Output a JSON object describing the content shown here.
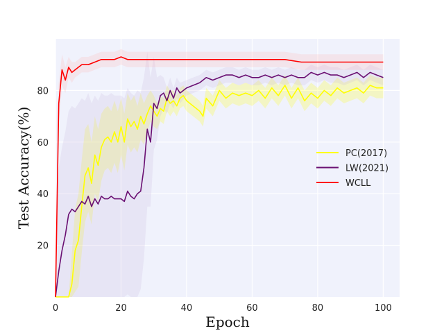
{
  "chart_data": {
    "type": "line",
    "title": "",
    "xlabel": "Epoch",
    "ylabel": "Test Accuracy(%)",
    "xlim": [
      0,
      105
    ],
    "ylim": [
      0,
      100
    ],
    "xticks": [
      0,
      20,
      40,
      60,
      80,
      100
    ],
    "yticks": [
      20,
      40,
      60,
      80
    ],
    "grid": true,
    "background": "#f0f2fc",
    "legend_position": "center-right",
    "series": [
      {
        "name": "PC(2017)",
        "color": "#ffff00",
        "shade": "#ffff00",
        "x": [
          0,
          2,
          3,
          4,
          5,
          6,
          7,
          8,
          9,
          10,
          11,
          12,
          13,
          14,
          15,
          16,
          17,
          18,
          19,
          20,
          21,
          22,
          23,
          24,
          25,
          26,
          27,
          28,
          29,
          30,
          31,
          32,
          33,
          34,
          35,
          36,
          37,
          38,
          39,
          40,
          42,
          44,
          45,
          46,
          48,
          50,
          52,
          54,
          56,
          58,
          60,
          62,
          64,
          66,
          68,
          70,
          72,
          74,
          76,
          78,
          80,
          82,
          84,
          86,
          88,
          90,
          92,
          94,
          96,
          98,
          100
        ],
        "y": [
          0,
          0,
          0,
          0,
          5,
          18,
          22,
          35,
          47,
          50,
          44,
          55,
          51,
          58,
          61,
          62,
          60,
          64,
          60,
          66,
          60,
          69,
          66,
          68,
          65,
          70,
          67,
          71,
          74,
          72,
          70,
          73,
          72,
          77,
          75,
          76,
          74,
          77,
          78,
          76,
          74,
          72,
          70,
          77,
          74,
          80,
          77,
          79,
          78,
          79,
          78,
          80,
          77,
          81,
          78,
          82,
          77,
          81,
          76,
          79,
          77,
          80,
          78,
          81,
          79,
          80,
          81,
          79,
          82,
          81,
          81
        ],
        "band": [
          0,
          0,
          0,
          0,
          12,
          16,
          18,
          18,
          18,
          17,
          16,
          15,
          14,
          13,
          12,
          12,
          12,
          12,
          12,
          11,
          11,
          10,
          10,
          10,
          9,
          9,
          8,
          7,
          6,
          6,
          5,
          5,
          5,
          5,
          5,
          4,
          4,
          4,
          4,
          4,
          4,
          4,
          4,
          4,
          4,
          4,
          4,
          4,
          4,
          4,
          4,
          4,
          4,
          4,
          4,
          4,
          4,
          4,
          4,
          4,
          4,
          4,
          4,
          4,
          4,
          4,
          4,
          4,
          4,
          4,
          4
        ]
      },
      {
        "name": "LW(2021)",
        "color": "#6a0f72",
        "shade": "#c8b4e0",
        "x": [
          0,
          1,
          2,
          3,
          4,
          5,
          6,
          7,
          8,
          9,
          10,
          11,
          12,
          13,
          14,
          15,
          16,
          17,
          18,
          19,
          20,
          21,
          22,
          23,
          24,
          25,
          26,
          27,
          28,
          29,
          30,
          31,
          32,
          33,
          34,
          35,
          36,
          37,
          38,
          40,
          42,
          44,
          46,
          48,
          50,
          52,
          54,
          56,
          58,
          60,
          62,
          64,
          66,
          68,
          70,
          72,
          74,
          76,
          78,
          80,
          82,
          84,
          86,
          88,
          90,
          92,
          94,
          96,
          98,
          100
        ],
        "y": [
          0,
          10,
          18,
          24,
          32,
          34,
          33,
          35,
          37,
          36,
          39,
          35,
          38,
          36,
          39,
          38,
          38,
          39,
          38,
          38,
          38,
          37,
          41,
          39,
          38,
          40,
          41,
          50,
          65,
          60,
          75,
          73,
          78,
          79,
          76,
          80,
          77,
          81,
          79,
          81,
          82,
          83,
          85,
          84,
          85,
          86,
          86,
          85,
          86,
          85,
          85,
          86,
          85,
          86,
          85,
          86,
          85,
          85,
          87,
          86,
          87,
          86,
          86,
          85,
          86,
          87,
          85,
          87,
          86,
          85
        ],
        "band": [
          0,
          40,
          40,
          40,
          40,
          40,
          40,
          40,
          40,
          40,
          40,
          40,
          40,
          40,
          40,
          40,
          40,
          40,
          40,
          40,
          40,
          40,
          40,
          40,
          40,
          40,
          38,
          35,
          30,
          25,
          18,
          12,
          8,
          6,
          5,
          5,
          4,
          4,
          4,
          3,
          3,
          3,
          3,
          3,
          3,
          3,
          3,
          3,
          3,
          3,
          3,
          3,
          3,
          3,
          3,
          3,
          3,
          3,
          3,
          3,
          3,
          3,
          3,
          3,
          3,
          3,
          3,
          3,
          3,
          3
        ]
      },
      {
        "name": "WCLL",
        "color": "#ff0000",
        "shade": "#ffb0b0",
        "x": [
          0,
          1,
          2,
          3,
          4,
          5,
          6,
          7,
          8,
          9,
          10,
          12,
          14,
          16,
          18,
          20,
          22,
          24,
          26,
          28,
          30,
          35,
          40,
          45,
          50,
          55,
          60,
          65,
          70,
          75,
          80,
          85,
          90,
          95,
          100
        ],
        "y": [
          0,
          75,
          88,
          84,
          89,
          87,
          88,
          89,
          90,
          90,
          90,
          91,
          92,
          92,
          92,
          93,
          92,
          92,
          92,
          92,
          92,
          92,
          92,
          92,
          92,
          92,
          92,
          92,
          92,
          91,
          91,
          91,
          91,
          91,
          91
        ],
        "band": [
          0,
          8,
          6,
          5,
          4,
          4,
          3,
          3,
          3,
          3,
          3,
          3,
          3,
          3,
          3,
          3,
          3,
          3,
          3,
          3,
          3,
          3,
          3,
          3,
          3,
          3,
          3,
          3,
          3,
          3,
          3,
          3,
          3,
          3,
          3
        ]
      }
    ]
  }
}
